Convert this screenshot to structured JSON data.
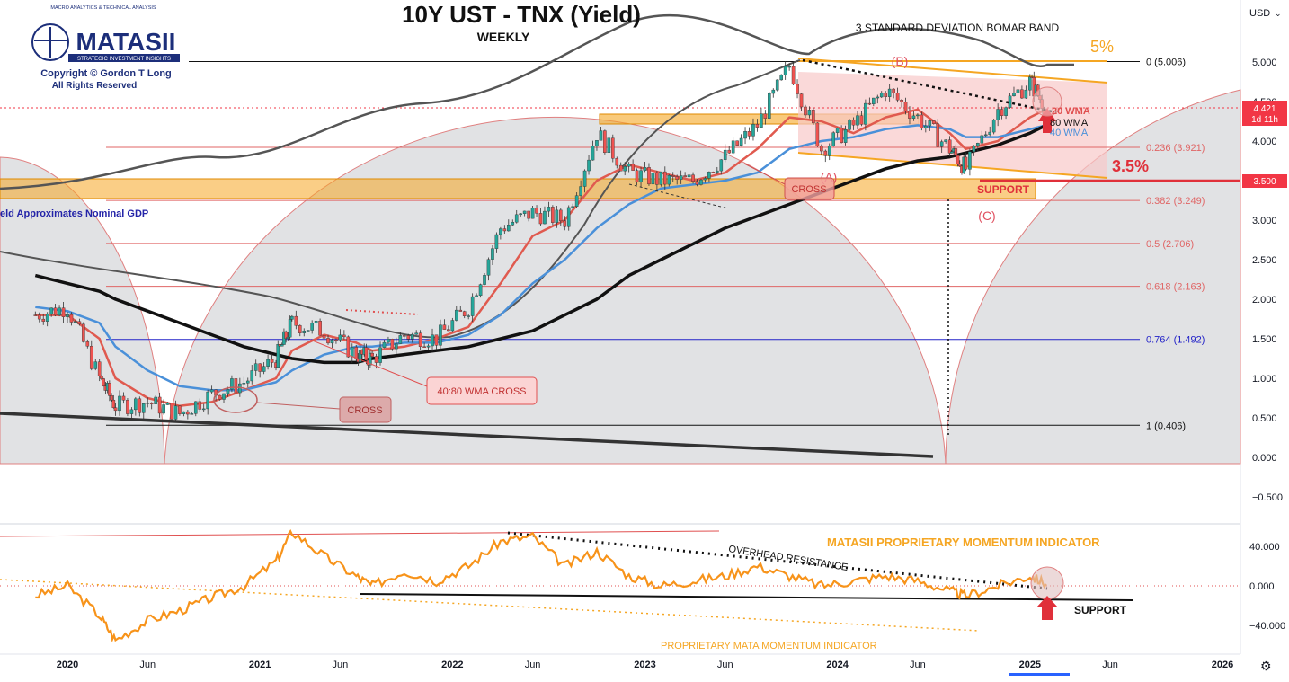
{
  "header": {
    "title": "10Y UST - TNX (Yield)",
    "subtitle": "WEEKLY",
    "currency": "USD",
    "logo_tagline_top": "MACRO ANALYTICS & TECHNICAL ANALYSIS",
    "logo_name": "MATASII",
    "logo_tagline_bottom": "STRATEGIC INVESTMENT INSIGHTS",
    "copyright": "Copyright © Gordon T Long",
    "rights": "All Rights Reserved"
  },
  "price_badge": {
    "value": "4.421",
    "sub": "1d 11h",
    "color": "#f23645"
  },
  "level_badge": {
    "value": "3.500",
    "color": "#f23645"
  },
  "colors": {
    "candle_up": "#26a69a",
    "candle_down": "#ef5350",
    "wma_20": "#e05a4f",
    "wma_40": "#4a90d9",
    "wma_80": "#111111",
    "momentum": "#f7931a",
    "fib_line": "#e06666",
    "band_orange": "#f5a623",
    "band_pink": "#f8c9c9"
  },
  "chart_data": [
    {
      "type": "line",
      "subtype": "candlestick",
      "title": "10Y UST - TNX (Yield)",
      "subtitle": "WEEKLY",
      "x_ticks": [
        "2020",
        "Jun",
        "2021",
        "Jun",
        "2022",
        "Jun",
        "2023",
        "Jun",
        "2024",
        "Jun",
        "2025",
        "Jun",
        "2026"
      ],
      "y_ticks": [
        "5.000",
        "4.500",
        "4.000",
        "3.500",
        "3.000",
        "2.500",
        "2.000",
        "1.500",
        "1.000",
        "0.500",
        "0.000",
        "−0.500"
      ],
      "ylim": [
        -0.75,
        5.75
      ],
      "x": [
        "2019-11",
        "2020-01",
        "2020-03",
        "2020-04",
        "2020-06",
        "2020-08",
        "2020-10",
        "2020-12",
        "2021-02",
        "2021-03",
        "2021-05",
        "2021-07",
        "2021-08",
        "2021-10",
        "2021-12",
        "2022-02",
        "2022-04",
        "2022-06",
        "2022-08",
        "2022-10",
        "2022-12",
        "2023-02",
        "2023-04",
        "2023-06",
        "2023-08",
        "2023-10",
        "2023-12",
        "2024-02",
        "2024-04",
        "2024-06",
        "2024-08",
        "2024-09",
        "2024-11",
        "2025-01",
        "2025-02"
      ],
      "series": [
        {
          "name": "TNX",
          "values": [
            1.8,
            1.9,
            1.0,
            0.65,
            0.7,
            0.55,
            0.8,
            0.95,
            1.25,
            1.7,
            1.6,
            1.3,
            1.25,
            1.55,
            1.5,
            1.9,
            2.9,
            3.1,
            3.0,
            4.1,
            3.6,
            3.5,
            3.5,
            3.8,
            4.2,
            4.95,
            3.9,
            4.2,
            4.65,
            4.3,
            3.9,
            3.65,
            4.4,
            4.75,
            4.42
          ]
        },
        {
          "name": "20 WMA",
          "values": [
            1.8,
            1.8,
            1.5,
            1.0,
            0.75,
            0.65,
            0.7,
            0.85,
            1.0,
            1.35,
            1.55,
            1.45,
            1.35,
            1.4,
            1.5,
            1.65,
            2.2,
            2.8,
            3.0,
            3.5,
            3.7,
            3.6,
            3.5,
            3.6,
            3.9,
            4.3,
            4.25,
            4.1,
            4.3,
            4.4,
            4.1,
            3.9,
            4.0,
            4.3,
            4.4
          ]
        },
        {
          "name": "40 WMA",
          "values": [
            1.9,
            1.85,
            1.7,
            1.4,
            1.1,
            0.9,
            0.85,
            0.85,
            0.95,
            1.1,
            1.3,
            1.4,
            1.4,
            1.45,
            1.45,
            1.55,
            1.8,
            2.2,
            2.5,
            2.9,
            3.2,
            3.4,
            3.45,
            3.5,
            3.6,
            3.9,
            4.0,
            4.05,
            4.15,
            4.2,
            4.15,
            4.05,
            4.05,
            4.15,
            4.2
          ]
        },
        {
          "name": "80 WMA",
          "values": [
            2.3,
            2.2,
            2.1,
            2.0,
            1.85,
            1.7,
            1.55,
            1.4,
            1.3,
            1.25,
            1.2,
            1.2,
            1.25,
            1.3,
            1.35,
            1.4,
            1.5,
            1.6,
            1.8,
            2.0,
            2.3,
            2.5,
            2.7,
            2.9,
            3.05,
            3.2,
            3.35,
            3.5,
            3.65,
            3.75,
            3.8,
            3.85,
            3.95,
            4.1,
            4.2
          ]
        }
      ],
      "fib_levels": [
        {
          "label": "0 (5.006)",
          "value": 5.006
        },
        {
          "label": "0.236 (3.921)",
          "value": 3.921
        },
        {
          "label": "0.382 (3.249)",
          "value": 3.249
        },
        {
          "label": "0.5 (2.706)",
          "value": 2.706
        },
        {
          "label": "0.618 (2.163)",
          "value": 2.163
        },
        {
          "label": "0.764 (1.492)",
          "value": 1.492
        },
        {
          "label": "1 (0.406)",
          "value": 0.406
        }
      ],
      "annotations": {
        "bomar": "3 STANDARD DEVIATION BOMAR BAND",
        "five_pct": "5%",
        "three_five_pct": "3.5%",
        "wave_a": "(A)",
        "wave_b": "(B)",
        "wave_c": "(C)",
        "cross_1": "CROSS",
        "cross_2": "CROSS",
        "wma_cross": "40:80 WMA CROSS",
        "support": "SUPPORT",
        "wma20_label": "20 WMA",
        "wma80_label": "80 WMA",
        "wma40_label": "40 WMA",
        "gdp_note": "eld Approximates Nominal GDP"
      }
    },
    {
      "type": "line",
      "title": "MATASII PROPRIETARY MOMENTUM INDICATOR",
      "bottom_label": "PROPRIETARY MATA MOMENTUM INDICATOR",
      "y_ticks": [
        "40.000",
        "0.000",
        "−40.000"
      ],
      "ylim": [
        -60,
        60
      ],
      "x": [
        "2019-11",
        "2020-01",
        "2020-03",
        "2020-04",
        "2020-06",
        "2020-08",
        "2020-10",
        "2020-12",
        "2021-02",
        "2021-03",
        "2021-05",
        "2021-07",
        "2021-08",
        "2021-10",
        "2021-12",
        "2022-02",
        "2022-04",
        "2022-06",
        "2022-08",
        "2022-10",
        "2022-12",
        "2023-02",
        "2023-04",
        "2023-06",
        "2023-08",
        "2023-10",
        "2023-12",
        "2024-02",
        "2024-04",
        "2024-06",
        "2024-08",
        "2024-09",
        "2024-11",
        "2025-01",
        "2025-02"
      ],
      "series": [
        {
          "name": "Momentum",
          "values": [
            -10,
            0,
            -30,
            -55,
            -35,
            -25,
            -12,
            0,
            25,
            55,
            30,
            10,
            0,
            15,
            5,
            20,
            45,
            50,
            20,
            35,
            10,
            0,
            5,
            10,
            20,
            10,
            0,
            5,
            10,
            5,
            -5,
            -10,
            0,
            10,
            2
          ]
        }
      ],
      "annotations": {
        "overhead": "OVERHEAD RESISTANCE",
        "support": "SUPPORT"
      }
    }
  ]
}
